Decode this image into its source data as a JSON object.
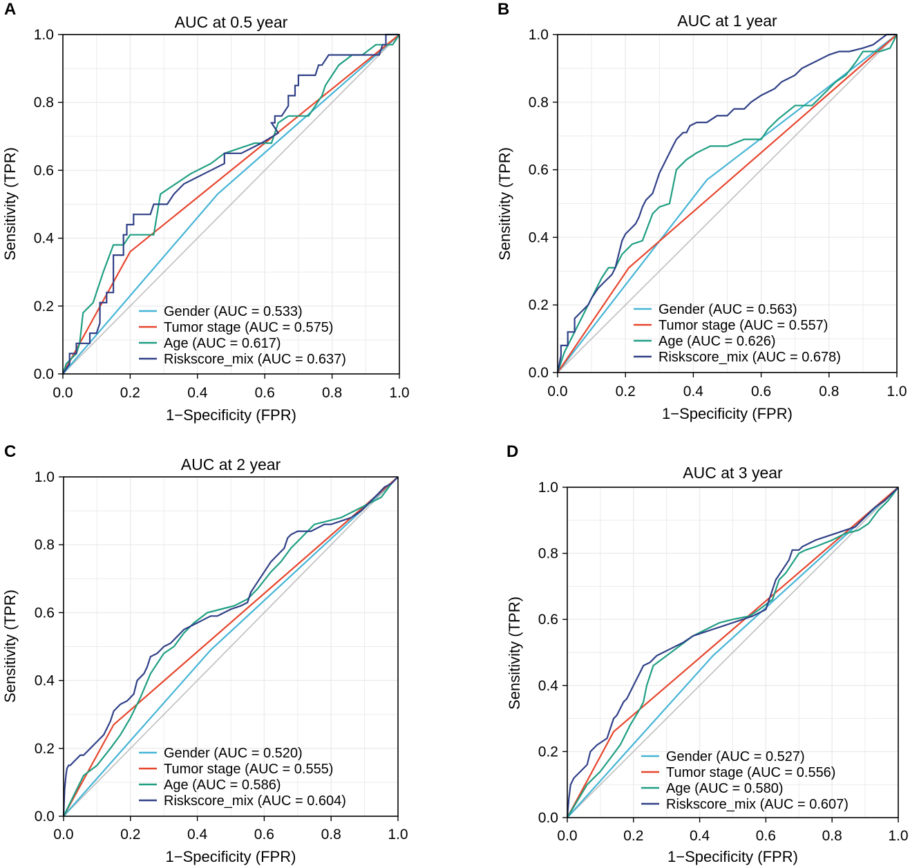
{
  "figure": {
    "description_free": true
  },
  "colors": {
    "gender": "#45B4D6",
    "tumor": "#E6452D",
    "age": "#1E9E82",
    "risk": "#2F3F86",
    "diagonal": "#BEBEBE",
    "grid": "#EBEBEB"
  },
  "chart_data": [
    {
      "panel": "A",
      "type": "line",
      "title": "AUC at 0.5 year",
      "xlabel": "1−Specificity (FPR)",
      "ylabel": "Sensitivity (TPR)",
      "xlim": [
        0,
        1
      ],
      "ylim": [
        0,
        1
      ],
      "xticks": [
        "0.0",
        "0.2",
        "0.4",
        "0.6",
        "0.8",
        "1.0"
      ],
      "yticks": [
        "0.0",
        "0.2",
        "0.4",
        "0.6",
        "0.8",
        "1.0"
      ],
      "legend_position": "bottom-right",
      "series": [
        {
          "name": "Gender",
          "key": "gender",
          "label": "Gender (AUC = 0.533)",
          "x": [
            0,
            0.46,
            1
          ],
          "y": [
            0,
            0.53,
            1
          ]
        },
        {
          "name": "Tumor stage",
          "key": "tumor",
          "label": "Tumor stage (AUC = 0.575)",
          "x": [
            0,
            0.2,
            1
          ],
          "y": [
            0,
            0.36,
            1
          ]
        },
        {
          "name": "Age",
          "key": "age",
          "label": "Age (AUC = 0.617)",
          "x": [
            0,
            0.01,
            0.04,
            0.05,
            0.06,
            0.09,
            0.12,
            0.15,
            0.18,
            0.2,
            0.27,
            0.29,
            0.38,
            0.44,
            0.48,
            0.57,
            0.62,
            0.64,
            0.67,
            0.73,
            0.75,
            0.77,
            0.78,
            0.8,
            0.82,
            0.86,
            0.89,
            0.93,
            0.98,
            1.0
          ],
          "y": [
            0,
            0.03,
            0.06,
            0.09,
            0.18,
            0.21,
            0.3,
            0.38,
            0.38,
            0.41,
            0.41,
            0.53,
            0.59,
            0.62,
            0.65,
            0.68,
            0.68,
            0.74,
            0.76,
            0.76,
            0.79,
            0.82,
            0.85,
            0.88,
            0.91,
            0.94,
            0.94,
            0.97,
            0.97,
            1.0
          ]
        },
        {
          "name": "Riskscore_mix",
          "key": "risk",
          "label": "Riskscore_mix (AUC = 0.637)",
          "x": [
            0,
            0.02,
            0.02,
            0.04,
            0.04,
            0.08,
            0.08,
            0.1,
            0.11,
            0.11,
            0.13,
            0.13,
            0.15,
            0.15,
            0.18,
            0.18,
            0.19,
            0.19,
            0.21,
            0.21,
            0.26,
            0.27,
            0.31,
            0.33,
            0.36,
            0.42,
            0.48,
            0.48,
            0.53,
            0.59,
            0.64,
            0.64,
            0.62,
            0.63,
            0.63,
            0.65,
            0.67,
            0.67,
            0.69,
            0.69,
            0.7,
            0.7,
            0.75,
            0.76,
            0.77,
            0.79,
            0.79,
            0.85,
            0.89,
            0.93,
            0.94,
            0.95,
            0.96,
            0.96,
            1.0
          ],
          "y": [
            0,
            0.03,
            0.06,
            0.06,
            0.09,
            0.09,
            0.12,
            0.12,
            0.15,
            0.21,
            0.21,
            0.24,
            0.24,
            0.35,
            0.35,
            0.41,
            0.41,
            0.44,
            0.44,
            0.47,
            0.47,
            0.5,
            0.5,
            0.53,
            0.56,
            0.59,
            0.62,
            0.65,
            0.65,
            0.68,
            0.71,
            0.71,
            0.74,
            0.74,
            0.76,
            0.76,
            0.79,
            0.82,
            0.82,
            0.85,
            0.85,
            0.88,
            0.88,
            0.91,
            0.91,
            0.94,
            0.94,
            0.94,
            0.94,
            0.94,
            0.94,
            0.97,
            0.97,
            1.0,
            1.0
          ]
        }
      ]
    },
    {
      "panel": "B",
      "type": "line",
      "title": "AUC at 1 year",
      "xlabel": "1−Specificity (FPR)",
      "ylabel": "Sensitivity (TPR)",
      "xlim": [
        0,
        1
      ],
      "ylim": [
        0,
        1
      ],
      "xticks": [
        "0.0",
        "0.2",
        "0.4",
        "0.6",
        "0.8",
        "1.0"
      ],
      "yticks": [
        "0.0",
        "0.2",
        "0.4",
        "0.6",
        "0.8",
        "1.0"
      ],
      "legend_position": "bottom-right",
      "series": [
        {
          "name": "Gender",
          "key": "gender",
          "label": "Gender (AUC = 0.563)",
          "x": [
            0,
            0.44,
            1
          ],
          "y": [
            0,
            0.57,
            1
          ]
        },
        {
          "name": "Tumor stage",
          "key": "tumor",
          "label": "Tumor stage (AUC = 0.557)",
          "x": [
            0,
            0.21,
            1
          ],
          "y": [
            0,
            0.31,
            1
          ]
        },
        {
          "name": "Age",
          "key": "age",
          "label": "Age (AUC = 0.626)",
          "x": [
            0,
            0.02,
            0.05,
            0.08,
            0.11,
            0.13,
            0.15,
            0.17,
            0.19,
            0.22,
            0.25,
            0.28,
            0.3,
            0.33,
            0.35,
            0.38,
            0.41,
            0.45,
            0.5,
            0.55,
            0.6,
            0.62,
            0.65,
            0.7,
            0.75,
            0.78,
            0.8,
            0.82,
            0.85,
            0.88,
            0.9,
            0.95,
            0.98,
            1.0
          ],
          "y": [
            0,
            0.06,
            0.12,
            0.18,
            0.24,
            0.28,
            0.31,
            0.31,
            0.35,
            0.38,
            0.39,
            0.47,
            0.49,
            0.5,
            0.6,
            0.63,
            0.65,
            0.67,
            0.67,
            0.69,
            0.69,
            0.72,
            0.75,
            0.79,
            0.79,
            0.82,
            0.84,
            0.86,
            0.88,
            0.92,
            0.95,
            0.95,
            0.96,
            1.0
          ]
        },
        {
          "name": "Riskscore_mix",
          "key": "risk",
          "label": "Riskscore_mix (AUC = 0.678)",
          "x": [
            0,
            0.01,
            0.01,
            0.03,
            0.03,
            0.05,
            0.05,
            0.07,
            0.09,
            0.1,
            0.12,
            0.14,
            0.16,
            0.17,
            0.18,
            0.19,
            0.2,
            0.21,
            0.23,
            0.24,
            0.25,
            0.26,
            0.27,
            0.28,
            0.29,
            0.3,
            0.31,
            0.32,
            0.33,
            0.34,
            0.35,
            0.36,
            0.37,
            0.38,
            0.39,
            0.41,
            0.44,
            0.47,
            0.5,
            0.52,
            0.55,
            0.57,
            0.6,
            0.62,
            0.64,
            0.66,
            0.68,
            0.7,
            0.72,
            0.74,
            0.76,
            0.78,
            0.8,
            0.83,
            0.86,
            0.9,
            0.93,
            0.97,
            1.0
          ],
          "y": [
            0,
            0.05,
            0.08,
            0.08,
            0.12,
            0.12,
            0.16,
            0.18,
            0.2,
            0.22,
            0.25,
            0.27,
            0.29,
            0.31,
            0.35,
            0.39,
            0.41,
            0.42,
            0.44,
            0.46,
            0.49,
            0.51,
            0.52,
            0.53,
            0.56,
            0.59,
            0.61,
            0.63,
            0.65,
            0.67,
            0.69,
            0.7,
            0.71,
            0.71,
            0.73,
            0.74,
            0.74,
            0.76,
            0.76,
            0.78,
            0.78,
            0.8,
            0.82,
            0.83,
            0.84,
            0.86,
            0.87,
            0.88,
            0.9,
            0.91,
            0.92,
            0.93,
            0.94,
            0.95,
            0.95,
            0.96,
            0.97,
            1.0,
            1.0
          ]
        }
      ]
    },
    {
      "panel": "C",
      "type": "line",
      "title": "AUC at 2 year",
      "xlabel": "1−Specificity (FPR)",
      "ylabel": "Sensitivity (TPR)",
      "xlim": [
        0,
        1
      ],
      "ylim": [
        0,
        1
      ],
      "xticks": [
        "0.0",
        "0.2",
        "0.4",
        "0.6",
        "0.8",
        "1.0"
      ],
      "yticks": [
        "0.0",
        "0.2",
        "0.4",
        "0.6",
        "0.8",
        "1.0"
      ],
      "legend_position": "bottom-right",
      "series": [
        {
          "name": "Gender",
          "key": "gender",
          "label": "Gender (AUC = 0.520)",
          "x": [
            0,
            0.44,
            1
          ],
          "y": [
            0,
            0.49,
            1
          ]
        },
        {
          "name": "Tumor stage",
          "key": "tumor",
          "label": "Tumor stage (AUC = 0.555)",
          "x": [
            0,
            0.15,
            1
          ],
          "y": [
            0,
            0.27,
            1
          ]
        },
        {
          "name": "Age",
          "key": "age",
          "label": "Age (AUC = 0.586)",
          "x": [
            0,
            0.03,
            0.06,
            0.1,
            0.14,
            0.17,
            0.2,
            0.23,
            0.26,
            0.3,
            0.33,
            0.36,
            0.39,
            0.43,
            0.47,
            0.51,
            0.55,
            0.58,
            0.62,
            0.65,
            0.68,
            0.72,
            0.75,
            0.79,
            0.83,
            0.87,
            0.91,
            0.95,
            0.98,
            1.0
          ],
          "y": [
            0,
            0.06,
            0.12,
            0.15,
            0.2,
            0.24,
            0.29,
            0.35,
            0.42,
            0.48,
            0.5,
            0.54,
            0.57,
            0.6,
            0.61,
            0.62,
            0.64,
            0.67,
            0.72,
            0.75,
            0.79,
            0.83,
            0.86,
            0.87,
            0.88,
            0.9,
            0.92,
            0.94,
            0.98,
            1.0
          ]
        },
        {
          "name": "Riskscore_mix",
          "key": "risk",
          "label": "Riskscore_mix (AUC = 0.604)",
          "x": [
            0,
            0.003,
            0.007,
            0.01,
            0.015,
            0.02,
            0.03,
            0.04,
            0.05,
            0.06,
            0.08,
            0.1,
            0.12,
            0.14,
            0.15,
            0.16,
            0.17,
            0.19,
            0.21,
            0.22,
            0.24,
            0.25,
            0.26,
            0.28,
            0.29,
            0.3,
            0.32,
            0.34,
            0.36,
            0.38,
            0.4,
            0.42,
            0.44,
            0.46,
            0.48,
            0.5,
            0.53,
            0.55,
            0.56,
            0.58,
            0.6,
            0.62,
            0.64,
            0.66,
            0.67,
            0.68,
            0.7,
            0.72,
            0.74,
            0.76,
            0.78,
            0.8,
            0.83,
            0.86,
            0.89,
            0.92,
            0.94,
            0.96,
            0.98,
            1.0
          ],
          "y": [
            0,
            0.08,
            0.12,
            0.14,
            0.15,
            0.15,
            0.16,
            0.17,
            0.18,
            0.18,
            0.2,
            0.22,
            0.24,
            0.28,
            0.31,
            0.32,
            0.33,
            0.34,
            0.36,
            0.4,
            0.42,
            0.44,
            0.47,
            0.48,
            0.49,
            0.5,
            0.51,
            0.53,
            0.55,
            0.56,
            0.57,
            0.58,
            0.59,
            0.59,
            0.6,
            0.61,
            0.62,
            0.63,
            0.66,
            0.69,
            0.72,
            0.75,
            0.77,
            0.79,
            0.82,
            0.83,
            0.84,
            0.84,
            0.84,
            0.85,
            0.86,
            0.86,
            0.87,
            0.88,
            0.9,
            0.93,
            0.95,
            0.97,
            0.98,
            1.0
          ]
        }
      ]
    },
    {
      "panel": "D",
      "type": "line",
      "title": "AUC at 3 year",
      "xlabel": "1−Specificity (FPR)",
      "ylabel": "Sensitivity (TPR)",
      "xlim": [
        0,
        1
      ],
      "ylim": [
        0,
        1
      ],
      "xticks": [
        "0.0",
        "0.2",
        "0.4",
        "0.6",
        "0.8",
        "1.0"
      ],
      "yticks": [
        "0.0",
        "0.2",
        "0.4",
        "0.6",
        "0.8",
        "1.0"
      ],
      "legend_position": "bottom-right",
      "series": [
        {
          "name": "Gender",
          "key": "gender",
          "label": "Gender (AUC = 0.527)",
          "x": [
            0,
            0.44,
            1
          ],
          "y": [
            0,
            0.49,
            1
          ]
        },
        {
          "name": "Tumor stage",
          "key": "tumor",
          "label": "Tumor stage (AUC = 0.556)",
          "x": [
            0,
            0.14,
            1
          ],
          "y": [
            0,
            0.26,
            1
          ]
        },
        {
          "name": "Age",
          "key": "age",
          "label": "Age (AUC = 0.580)",
          "x": [
            0,
            0.03,
            0.06,
            0.1,
            0.13,
            0.16,
            0.19,
            0.22,
            0.23,
            0.24,
            0.26,
            0.3,
            0.34,
            0.38,
            0.42,
            0.46,
            0.5,
            0.55,
            0.58,
            0.62,
            0.64,
            0.66,
            0.68,
            0.7,
            0.72,
            0.75,
            0.8,
            0.84,
            0.88,
            0.91,
            0.94,
            0.97,
            1.0
          ],
          "y": [
            0,
            0.05,
            0.1,
            0.14,
            0.18,
            0.22,
            0.28,
            0.33,
            0.35,
            0.4,
            0.46,
            0.49,
            0.52,
            0.55,
            0.57,
            0.59,
            0.6,
            0.61,
            0.63,
            0.66,
            0.72,
            0.74,
            0.77,
            0.8,
            0.81,
            0.82,
            0.84,
            0.86,
            0.87,
            0.89,
            0.93,
            0.96,
            1.0
          ]
        },
        {
          "name": "Riskscore_mix",
          "key": "risk",
          "label": "Riskscore_mix (AUC = 0.607)",
          "x": [
            0,
            0.005,
            0.01,
            0.02,
            0.03,
            0.04,
            0.06,
            0.07,
            0.09,
            0.12,
            0.13,
            0.14,
            0.15,
            0.16,
            0.17,
            0.18,
            0.19,
            0.2,
            0.21,
            0.22,
            0.23,
            0.25,
            0.27,
            0.29,
            0.31,
            0.33,
            0.35,
            0.38,
            0.41,
            0.44,
            0.47,
            0.5,
            0.53,
            0.56,
            0.58,
            0.6,
            0.61,
            0.62,
            0.63,
            0.65,
            0.67,
            0.68,
            0.69,
            0.7,
            0.71,
            0.73,
            0.75,
            0.78,
            0.81,
            0.84,
            0.87,
            0.89,
            0.91,
            0.93,
            0.96,
            0.98,
            1.0
          ],
          "y": [
            0,
            0.06,
            0.1,
            0.12,
            0.13,
            0.14,
            0.16,
            0.2,
            0.22,
            0.24,
            0.27,
            0.3,
            0.31,
            0.33,
            0.35,
            0.36,
            0.38,
            0.4,
            0.42,
            0.44,
            0.46,
            0.47,
            0.49,
            0.5,
            0.51,
            0.52,
            0.53,
            0.55,
            0.56,
            0.57,
            0.58,
            0.59,
            0.6,
            0.61,
            0.62,
            0.63,
            0.66,
            0.69,
            0.72,
            0.75,
            0.78,
            0.81,
            0.81,
            0.81,
            0.82,
            0.83,
            0.84,
            0.85,
            0.86,
            0.87,
            0.88,
            0.9,
            0.92,
            0.94,
            0.96,
            0.98,
            1.0
          ]
        }
      ]
    }
  ]
}
